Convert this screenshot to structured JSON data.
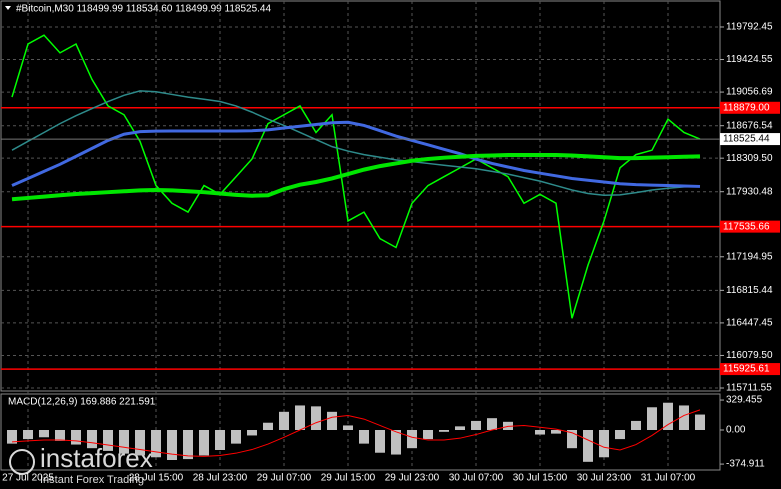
{
  "chart_data": [
    {
      "type": "line",
      "title": "#Bitcoin,M30  118499.99 118534.60 118499.99 118525.44",
      "categories": [
        null,
        "27 Jul 2025",
        null,
        null,
        null,
        null,
        null,
        null,
        null,
        "28 Jul 15:00",
        null,
        null,
        null,
        "28 Jul 23:00",
        null,
        null,
        null,
        "29 Jul 07:00",
        null,
        null,
        null,
        "29 Jul 15:00",
        null,
        null,
        null,
        "29 Jul 23:00",
        null,
        null,
        null,
        "30 Jul 07:00",
        null,
        null,
        null,
        "30 Jul 15:00",
        null,
        null,
        null,
        "30 Jul 23:00",
        null,
        null,
        null,
        "31 Jul 07:00",
        null,
        null
      ],
      "series": [
        {
          "color": "#00ff00",
          "width": 1.5,
          "values": [
            119000,
            119600,
            119700,
            119500,
            119600,
            119200,
            118900,
            118800,
            118500,
            118000,
            117800,
            117700,
            118000,
            117900,
            118100,
            118300,
            118700,
            118800,
            118900,
            118600,
            118800,
            117600,
            117700,
            117400,
            117300,
            117800,
            118000,
            118100,
            118200,
            118300,
            118200,
            118100,
            117800,
            117900,
            117800,
            116500,
            117100,
            117600,
            118200,
            118350,
            118400,
            118750,
            118600,
            118525.44
          ]
        },
        {
          "color": "#2e8b8b",
          "width": 1.5,
          "values": [
            118400,
            118500,
            118600,
            118700,
            118790,
            118870,
            118950,
            119020,
            119070,
            119060,
            119030,
            119000,
            118975,
            118950,
            118900,
            118830,
            118750,
            118680,
            118600,
            118520,
            118440,
            118390,
            118350,
            118320,
            118290,
            118270,
            118250,
            118230,
            118210,
            118190,
            118160,
            118130,
            118090,
            118050,
            118000,
            117950,
            117910,
            117890,
            117895,
            117920,
            117950,
            117970,
            117985,
            117990
          ]
        },
        {
          "color": "#4169e1",
          "width": 3,
          "values": [
            118000,
            118080,
            118160,
            118240,
            118330,
            118420,
            118510,
            118580,
            118610,
            118615,
            118617,
            118617,
            118617,
            118617,
            118617,
            118620,
            118630,
            118650,
            118670,
            118690,
            118710,
            118715,
            118680,
            118620,
            118560,
            118510,
            118460,
            118410,
            118360,
            118300,
            118250,
            118210,
            118170,
            118140,
            118110,
            118080,
            118060,
            118040,
            118020,
            118010,
            118005,
            118000,
            117995,
            117990
          ]
        },
        {
          "color": "#00e600",
          "width": 4,
          "values": [
            117845,
            117860,
            117875,
            117890,
            117905,
            117915,
            117925,
            117935,
            117945,
            117950,
            117945,
            117935,
            117925,
            117910,
            117895,
            117885,
            117890,
            117960,
            118010,
            118040,
            118080,
            118130,
            118180,
            118220,
            118250,
            118280,
            118300,
            118315,
            118325,
            118335,
            118340,
            118345,
            118345,
            118345,
            118345,
            118340,
            118330,
            118320,
            118310,
            118310,
            118315,
            118320,
            118325,
            118330
          ]
        }
      ],
      "ylim": [
        115689,
        120007
      ],
      "yticks": [
        119792.45,
        119424.55,
        119056.69,
        118676.54,
        {
          "value": 118309.5,
          "label": "118309.50"
        },
        117930.48,
        117194.95,
        116815.44,
        116447.45,
        {
          "value": 116079.5,
          "label": "116079.50"
        },
        115711.55
      ],
      "levels": {
        "color": "#ff0000",
        "values": [
          118879,
          117535.66,
          115925.61
        ],
        "value_labels": [
          "118879.00",
          "117535.66",
          "115925.61"
        ]
      },
      "last": 118525.44,
      "grid": true
    },
    {
      "type": "bar",
      "title": "MACD(12,26,9) 169.886 221.591",
      "series": [
        {
          "type": "bar",
          "color": "#c0c0c0",
          "values": [
            -150,
            -100,
            -80,
            -120,
            -160,
            -200,
            -230,
            -260,
            -280,
            -300,
            -330,
            -320,
            -280,
            -220,
            -150,
            -60,
            80,
            200,
            270,
            260,
            200,
            50,
            -150,
            -250,
            -270,
            -200,
            -100,
            -20,
            40,
            100,
            130,
            90,
            0,
            -50,
            -40,
            -200,
            -350,
            -300,
            -100,
            100,
            250,
            300,
            270,
            169.886
          ]
        },
        {
          "type": "line",
          "color": "#ff0000",
          "values": [
            -130,
            -120,
            -110,
            -110,
            -120,
            -140,
            -165,
            -190,
            -215,
            -240,
            -265,
            -285,
            -290,
            -280,
            -255,
            -215,
            -155,
            -80,
            0,
            80,
            140,
            160,
            120,
            50,
            -20,
            -80,
            -110,
            -110,
            -90,
            -50,
            0,
            40,
            50,
            30,
            10,
            -30,
            -110,
            -190,
            -220,
            -160,
            -60,
            60,
            160,
            221.591
          ]
        }
      ],
      "ylim": [
        -440,
        385
      ],
      "yticks": [
        329.455,
        {
          "value": 0,
          "label": "0.00"
        },
        -374.911
      ]
    }
  ],
  "watermark": {
    "name": "instaforex",
    "tagline": "Instant Forex Trading"
  }
}
